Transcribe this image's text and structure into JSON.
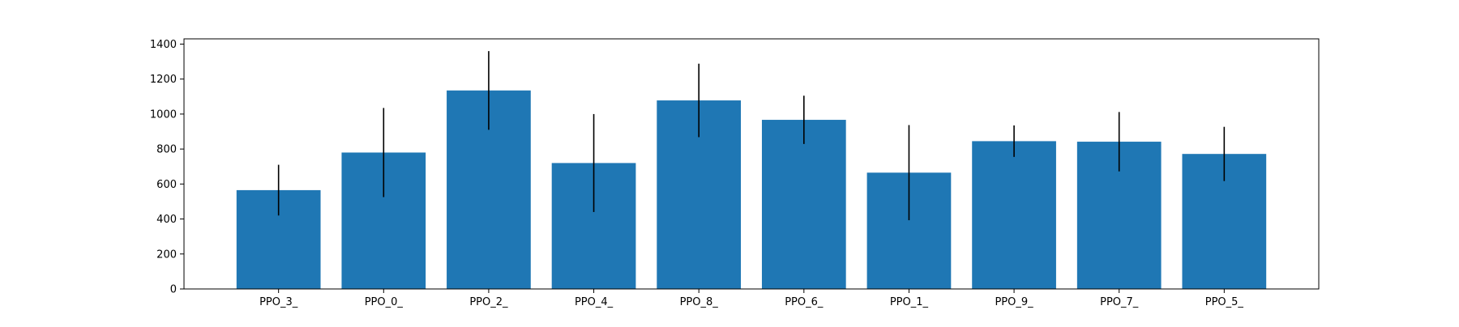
{
  "chart_data": {
    "type": "bar",
    "title": "",
    "xlabel": "",
    "ylabel": "",
    "categories": [
      "PPO_3_",
      "PPO_0_",
      "PPO_2_",
      "PPO_4_",
      "PPO_8_",
      "PPO_6_",
      "PPO_1_",
      "PPO_9_",
      "PPO_7_",
      "PPO_5_"
    ],
    "values": [
      565,
      780,
      1135,
      720,
      1078,
      967,
      665,
      845,
      842,
      772
    ],
    "errors": [
      145,
      255,
      225,
      280,
      210,
      138,
      272,
      90,
      170,
      155
    ],
    "ylim": [
      0,
      1430
    ],
    "yticks": [
      0,
      200,
      400,
      600,
      800,
      1000,
      1200,
      1400
    ],
    "grid": false,
    "bar_color": "#1f77b4",
    "error_color": "#000000"
  }
}
